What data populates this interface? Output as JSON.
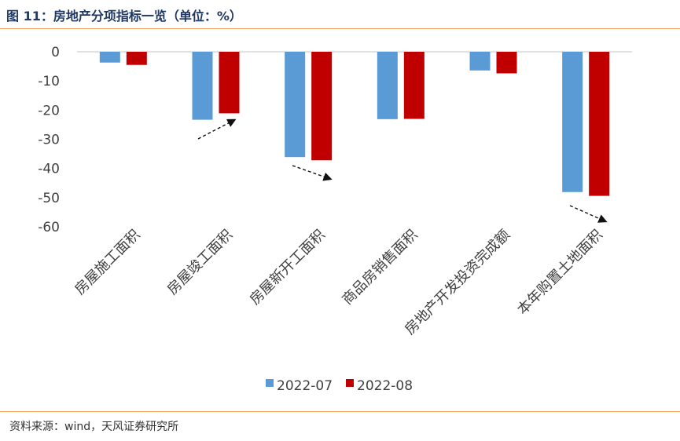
{
  "title": "图 11：房地产分项指标一览（单位：%）",
  "source": "资料来源：wind，天风证券研究所",
  "colors": {
    "series1": "#5b9bd5",
    "series2": "#c00000",
    "rule": "#f4a460"
  },
  "chart_data": {
    "type": "bar",
    "categories": [
      "房屋施工面积",
      "房屋竣工面积",
      "房屋新开工面积",
      "商品房销售面积",
      "房地产开发投资完成额",
      "本年购置土地面积"
    ],
    "series": [
      {
        "name": "2022-07",
        "values": [
          -3.7,
          -23.3,
          -36.1,
          -23.1,
          -6.4,
          -48.1
        ]
      },
      {
        "name": "2022-08",
        "values": [
          -4.5,
          -21.1,
          -37.2,
          -23.0,
          -7.4,
          -49.4
        ]
      }
    ],
    "ylim": [
      -60,
      0
    ],
    "yticks": [
      "0",
      "-10",
      "-20",
      "-30",
      "-40",
      "-50",
      "-60"
    ],
    "legend": "bottom",
    "grid": false,
    "annotations": "dashed trend arrows under categories 2, 3 and 6"
  }
}
